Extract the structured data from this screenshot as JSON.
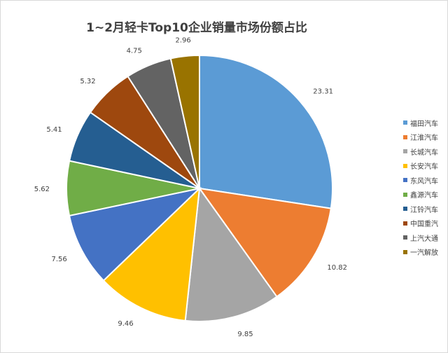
{
  "chart_data": {
    "type": "pie",
    "title": "1~2月轻卡Top10企业销量市场份额占比",
    "legend_position": "right",
    "start_angle_deg": 0,
    "direction": "clockwise",
    "categories": [
      "福田汽车",
      "江淮汽车",
      "长城汽车",
      "长安汽车",
      "东风汽车",
      "鑫源汽车",
      "江铃汽车",
      "中国重汽",
      "上汽大通",
      "一汽解放"
    ],
    "values": [
      23.31,
      10.82,
      9.85,
      9.46,
      7.56,
      5.62,
      5.41,
      5.32,
      4.75,
      2.96
    ],
    "value_labels": [
      "23.31",
      "10.82",
      "9.85",
      "9.46",
      "7.56",
      "5.62",
      "5.41",
      "5.32",
      "4.75",
      "2.96"
    ],
    "colors": [
      "#5B9BD5",
      "#ED7D31",
      "#A5A5A5",
      "#FFC000",
      "#4472C4",
      "#70AD47",
      "#255E91",
      "#9E480E",
      "#636363",
      "#997300"
    ]
  }
}
